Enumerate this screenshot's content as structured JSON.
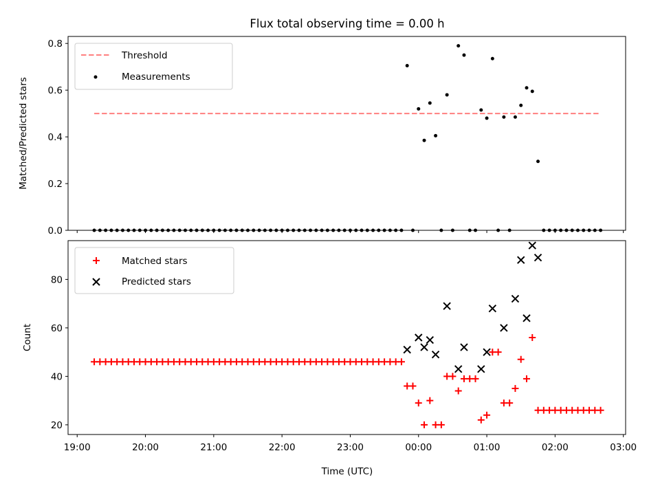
{
  "chart_data": [
    {
      "type": "scatter",
      "title": "Flux total observing time = 0.00 h",
      "xlabel": "",
      "ylabel": "Matched/Predicted stars",
      "xlim": [
        "18:52",
        "03:02"
      ],
      "ylim": [
        0,
        0.83
      ],
      "yticks": [
        0.0,
        0.2,
        0.4,
        0.6,
        0.8
      ],
      "ytick_labels": [
        "0.0",
        "0.2",
        "0.4",
        "0.6",
        "0.8"
      ],
      "grid": false,
      "legend_position": "top-left",
      "threshold": {
        "name": "Threshold",
        "value": 0.5,
        "x_range": [
          "19:15",
          "02:40"
        ],
        "color": "#ff7f7f",
        "style": "dashed"
      },
      "series": [
        {
          "name": "Measurements",
          "color": "#000000",
          "marker": "dot",
          "points": [
            [
              "19:15",
              0
            ],
            [
              "19:20",
              0
            ],
            [
              "19:25",
              0
            ],
            [
              "19:30",
              0
            ],
            [
              "19:35",
              0
            ],
            [
              "19:40",
              0
            ],
            [
              "19:45",
              0
            ],
            [
              "19:50",
              0
            ],
            [
              "19:55",
              0
            ],
            [
              "20:00",
              0
            ],
            [
              "20:05",
              0
            ],
            [
              "20:10",
              0
            ],
            [
              "20:15",
              0
            ],
            [
              "20:20",
              0
            ],
            [
              "20:25",
              0
            ],
            [
              "20:30",
              0
            ],
            [
              "20:35",
              0
            ],
            [
              "20:40",
              0
            ],
            [
              "20:45",
              0
            ],
            [
              "20:50",
              0
            ],
            [
              "20:55",
              0
            ],
            [
              "21:00",
              0
            ],
            [
              "21:05",
              0
            ],
            [
              "21:10",
              0
            ],
            [
              "21:15",
              0
            ],
            [
              "21:20",
              0
            ],
            [
              "21:25",
              0
            ],
            [
              "21:30",
              0
            ],
            [
              "21:35",
              0
            ],
            [
              "21:40",
              0
            ],
            [
              "21:45",
              0
            ],
            [
              "21:50",
              0
            ],
            [
              "21:55",
              0
            ],
            [
              "22:00",
              0
            ],
            [
              "22:05",
              0
            ],
            [
              "22:10",
              0
            ],
            [
              "22:15",
              0
            ],
            [
              "22:20",
              0
            ],
            [
              "22:25",
              0
            ],
            [
              "22:30",
              0
            ],
            [
              "22:35",
              0
            ],
            [
              "22:40",
              0
            ],
            [
              "22:45",
              0
            ],
            [
              "22:50",
              0
            ],
            [
              "22:55",
              0
            ],
            [
              "23:00",
              0
            ],
            [
              "23:05",
              0
            ],
            [
              "23:10",
              0
            ],
            [
              "23:15",
              0
            ],
            [
              "23:20",
              0
            ],
            [
              "23:25",
              0
            ],
            [
              "23:30",
              0
            ],
            [
              "23:35",
              0
            ],
            [
              "23:40",
              0
            ],
            [
              "23:45",
              0
            ],
            [
              "23:50",
              0.705
            ],
            [
              "23:55",
              0
            ],
            [
              "00:00",
              0.52
            ],
            [
              "00:05",
              0.385
            ],
            [
              "00:10",
              0.545
            ],
            [
              "00:15",
              0.405
            ],
            [
              "00:20",
              0
            ],
            [
              "00:25",
              0.58
            ],
            [
              "00:30",
              0
            ],
            [
              "00:35",
              0.79
            ],
            [
              "00:40",
              0.75
            ],
            [
              "00:45",
              0
            ],
            [
              "00:50",
              0
            ],
            [
              "00:55",
              0.515
            ],
            [
              "01:00",
              0.48
            ],
            [
              "01:05",
              0.735
            ],
            [
              "01:10",
              0
            ],
            [
              "01:15",
              0.485
            ],
            [
              "01:20",
              0
            ],
            [
              "01:25",
              0.485
            ],
            [
              "01:30",
              0.535
            ],
            [
              "01:35",
              0.61
            ],
            [
              "01:40",
              0.595
            ],
            [
              "01:45",
              0.295
            ],
            [
              "01:50",
              0
            ],
            [
              "01:55",
              0
            ],
            [
              "02:00",
              0
            ],
            [
              "02:05",
              0
            ],
            [
              "02:10",
              0
            ],
            [
              "02:15",
              0
            ],
            [
              "02:20",
              0
            ],
            [
              "02:25",
              0
            ],
            [
              "02:30",
              0
            ],
            [
              "02:35",
              0
            ],
            [
              "02:40",
              0
            ]
          ]
        }
      ]
    },
    {
      "type": "scatter",
      "title": "",
      "xlabel": "Time (UTC)",
      "ylabel": "Count",
      "xlim": [
        "18:52",
        "03:02"
      ],
      "ylim": [
        16,
        96
      ],
      "yticks": [
        20,
        40,
        60,
        80
      ],
      "ytick_labels": [
        "20",
        "40",
        "60",
        "80"
      ],
      "xticks": [
        "19:00",
        "20:00",
        "21:00",
        "22:00",
        "23:00",
        "00:00",
        "01:00",
        "02:00",
        "03:00"
      ],
      "xtick_labels": [
        "19:00",
        "20:00",
        "21:00",
        "22:00",
        "23:00",
        "00:00",
        "01:00",
        "02:00",
        "03:00"
      ],
      "grid": false,
      "legend_position": "top-left",
      "series": [
        {
          "name": "Matched stars",
          "color": "#ff0000",
          "marker": "plus",
          "points": [
            [
              "19:15",
              46
            ],
            [
              "19:20",
              46
            ],
            [
              "19:25",
              46
            ],
            [
              "19:30",
              46
            ],
            [
              "19:35",
              46
            ],
            [
              "19:40",
              46
            ],
            [
              "19:45",
              46
            ],
            [
              "19:50",
              46
            ],
            [
              "19:55",
              46
            ],
            [
              "20:00",
              46
            ],
            [
              "20:05",
              46
            ],
            [
              "20:10",
              46
            ],
            [
              "20:15",
              46
            ],
            [
              "20:20",
              46
            ],
            [
              "20:25",
              46
            ],
            [
              "20:30",
              46
            ],
            [
              "20:35",
              46
            ],
            [
              "20:40",
              46
            ],
            [
              "20:45",
              46
            ],
            [
              "20:50",
              46
            ],
            [
              "20:55",
              46
            ],
            [
              "21:00",
              46
            ],
            [
              "21:05",
              46
            ],
            [
              "21:10",
              46
            ],
            [
              "21:15",
              46
            ],
            [
              "21:20",
              46
            ],
            [
              "21:25",
              46
            ],
            [
              "21:30",
              46
            ],
            [
              "21:35",
              46
            ],
            [
              "21:40",
              46
            ],
            [
              "21:45",
              46
            ],
            [
              "21:50",
              46
            ],
            [
              "21:55",
              46
            ],
            [
              "22:00",
              46
            ],
            [
              "22:05",
              46
            ],
            [
              "22:10",
              46
            ],
            [
              "22:15",
              46
            ],
            [
              "22:20",
              46
            ],
            [
              "22:25",
              46
            ],
            [
              "22:30",
              46
            ],
            [
              "22:35",
              46
            ],
            [
              "22:40",
              46
            ],
            [
              "22:45",
              46
            ],
            [
              "22:50",
              46
            ],
            [
              "22:55",
              46
            ],
            [
              "23:00",
              46
            ],
            [
              "23:05",
              46
            ],
            [
              "23:10",
              46
            ],
            [
              "23:15",
              46
            ],
            [
              "23:20",
              46
            ],
            [
              "23:25",
              46
            ],
            [
              "23:30",
              46
            ],
            [
              "23:35",
              46
            ],
            [
              "23:40",
              46
            ],
            [
              "23:45",
              46
            ],
            [
              "23:50",
              36
            ],
            [
              "23:55",
              36
            ],
            [
              "00:00",
              29
            ],
            [
              "00:05",
              20
            ],
            [
              "00:10",
              30
            ],
            [
              "00:15",
              20
            ],
            [
              "00:20",
              20
            ],
            [
              "00:25",
              40
            ],
            [
              "00:30",
              40
            ],
            [
              "00:35",
              34
            ],
            [
              "00:40",
              39
            ],
            [
              "00:45",
              39
            ],
            [
              "00:50",
              39
            ],
            [
              "00:55",
              22
            ],
            [
              "01:00",
              24
            ],
            [
              "01:05",
              50
            ],
            [
              "01:10",
              50
            ],
            [
              "01:15",
              29
            ],
            [
              "01:20",
              29
            ],
            [
              "01:25",
              35
            ],
            [
              "01:30",
              47
            ],
            [
              "01:35",
              39
            ],
            [
              "01:40",
              56
            ],
            [
              "01:45",
              26
            ],
            [
              "01:50",
              26
            ],
            [
              "01:55",
              26
            ],
            [
              "02:00",
              26
            ],
            [
              "02:05",
              26
            ],
            [
              "02:10",
              26
            ],
            [
              "02:15",
              26
            ],
            [
              "02:20",
              26
            ],
            [
              "02:25",
              26
            ],
            [
              "02:30",
              26
            ],
            [
              "02:35",
              26
            ],
            [
              "02:40",
              26
            ]
          ]
        },
        {
          "name": "Predicted stars",
          "color": "#000000",
          "marker": "x",
          "points": [
            [
              "23:50",
              51
            ],
            [
              "00:00",
              56
            ],
            [
              "00:05",
              52
            ],
            [
              "00:10",
              55
            ],
            [
              "00:15",
              49
            ],
            [
              "00:25",
              69
            ],
            [
              "00:35",
              43
            ],
            [
              "00:40",
              52
            ],
            [
              "00:55",
              43
            ],
            [
              "01:00",
              50
            ],
            [
              "01:05",
              68
            ],
            [
              "01:15",
              60
            ],
            [
              "01:25",
              72
            ],
            [
              "01:30",
              88
            ],
            [
              "01:35",
              64
            ],
            [
              "01:40",
              94
            ],
            [
              "01:45",
              89
            ]
          ]
        }
      ]
    }
  ]
}
